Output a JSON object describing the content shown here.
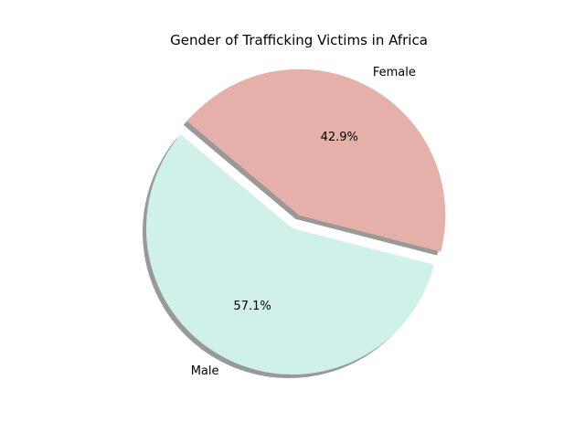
{
  "chart_data": {
    "type": "pie",
    "title": "Gender of Trafficking Victims in Africa",
    "slices": [
      {
        "label": "Male",
        "value": 57.1,
        "pct_label": "57.1%",
        "color": "#d0f0ea",
        "exploded": false
      },
      {
        "label": "Female",
        "value": 42.9,
        "pct_label": "42.9%",
        "color": "#e6b0aa",
        "exploded": true
      }
    ],
    "shadow": true,
    "shadow_color": "#999999"
  }
}
